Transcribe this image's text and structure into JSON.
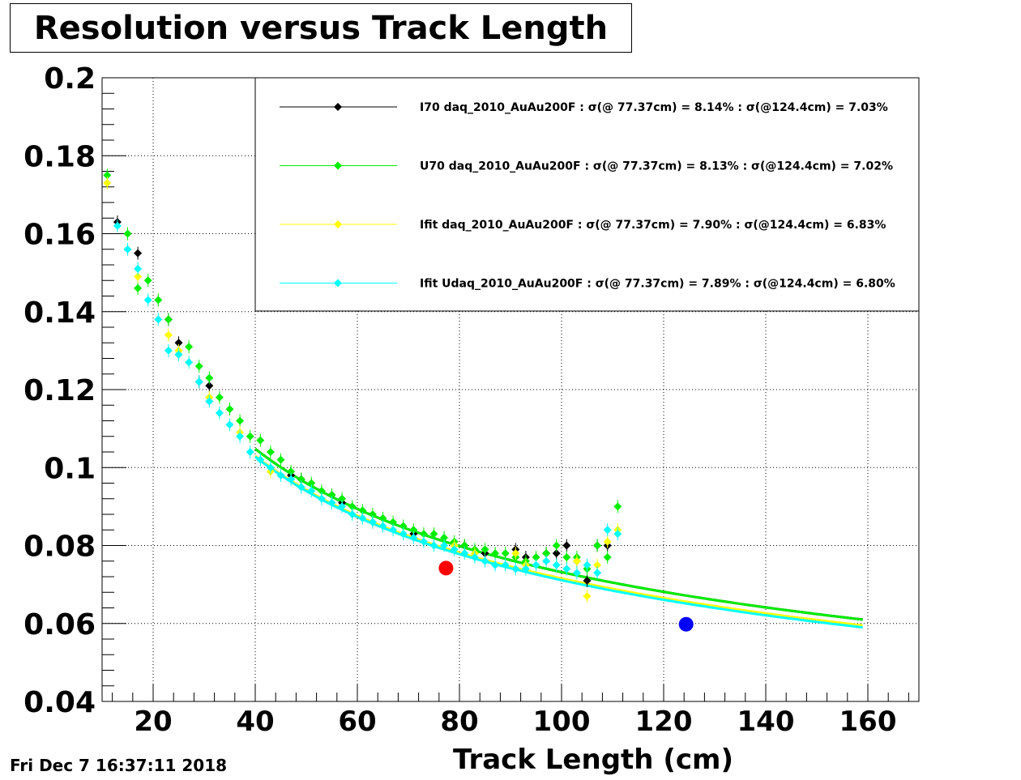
{
  "chart_data": {
    "type": "scatter",
    "title": "Resolution versus Track Length",
    "xlabel": "Track Length (cm)",
    "ylabel": "",
    "xlim": [
      10,
      170
    ],
    "ylim": [
      0.04,
      0.2
    ],
    "x_ticks": [
      20,
      40,
      60,
      80,
      100,
      120,
      140,
      160
    ],
    "y_ticks": [
      "0.04",
      "0.06",
      "0.08",
      "0.1",
      "0.12",
      "0.14",
      "0.16",
      "0.18",
      "0.2"
    ],
    "grid": true,
    "legend_position": "top-right",
    "timestamp": "Fri Dec  7 16:37:11 2018",
    "series": [
      {
        "name": "I70  daq_2010_AuAu200F : σ(@ 77.37cm) =  8.14% : σ(@124.4cm) =  7.03%",
        "color": "#000000",
        "x": [
          13,
          17,
          23,
          25,
          29,
          31,
          47,
          49,
          55,
          57,
          63,
          71,
          81,
          85,
          91,
          93,
          97,
          99,
          101,
          103,
          105,
          107,
          109
        ],
        "y": [
          0.163,
          0.155,
          0.138,
          0.132,
          0.122,
          0.121,
          0.098,
          0.097,
          0.093,
          0.091,
          0.086,
          0.083,
          0.08,
          0.078,
          0.079,
          0.077,
          0.078,
          0.078,
          0.08,
          0.076,
          0.071,
          0.08,
          0.08
        ],
        "fit": {
          "x_start": 40,
          "x_end": 159,
          "y_start": 0.1048,
          "y_end": 0.061
        }
      },
      {
        "name": "U70  daq_2010_AuAu200F : σ(@ 77.37cm) =  8.13% : σ(@124.4cm) =  7.02%",
        "color": "#00ee00",
        "x": [
          11,
          15,
          17,
          19,
          21,
          23,
          25,
          27,
          29,
          31,
          33,
          35,
          37,
          39,
          41,
          43,
          45,
          47,
          49,
          51,
          53,
          55,
          57,
          59,
          61,
          63,
          65,
          67,
          69,
          71,
          73,
          75,
          77,
          79,
          81,
          83,
          85,
          87,
          89,
          91,
          93,
          95,
          97,
          99,
          101,
          103,
          105,
          107,
          109,
          111
        ],
        "y": [
          0.175,
          0.16,
          0.146,
          0.148,
          0.143,
          0.138,
          0.129,
          0.131,
          0.126,
          0.123,
          0.118,
          0.115,
          0.112,
          0.108,
          0.107,
          0.104,
          0.102,
          0.099,
          0.097,
          0.096,
          0.094,
          0.093,
          0.092,
          0.09,
          0.089,
          0.088,
          0.087,
          0.086,
          0.085,
          0.084,
          0.083,
          0.083,
          0.082,
          0.081,
          0.08,
          0.079,
          0.079,
          0.078,
          0.078,
          0.077,
          0.076,
          0.077,
          0.078,
          0.08,
          0.077,
          0.077,
          0.074,
          0.08,
          0.077,
          0.09
        ],
        "fit": {
          "x_start": 40,
          "x_end": 159,
          "y_start": 0.1048,
          "y_end": 0.061
        }
      },
      {
        "name": "Ifit daq_2010_AuAu200F : σ(@ 77.37cm) =  7.90% : σ(@124.4cm) =  6.83%",
        "color": "#ffff00",
        "x": [
          11,
          17,
          23,
          25,
          27,
          31,
          37,
          43,
          63,
          79,
          83,
          85,
          91,
          93,
          103,
          105,
          107,
          109,
          111
        ],
        "y": [
          0.173,
          0.149,
          0.134,
          0.13,
          0.127,
          0.118,
          0.109,
          0.099,
          0.086,
          0.08,
          0.078,
          0.076,
          0.078,
          0.075,
          0.076,
          0.067,
          0.075,
          0.081,
          0.084
        ],
        "fit": {
          "x_start": 40,
          "x_end": 159,
          "y_start": 0.103,
          "y_end": 0.0595
        }
      },
      {
        "name": "Ifit Udaq_2010_AuAu200F : σ(@ 77.37cm) =  7.89% : σ(@124.4cm) =  6.80%",
        "color": "#00ffff",
        "x": [
          13,
          15,
          17,
          19,
          21,
          23,
          25,
          27,
          29,
          31,
          33,
          35,
          37,
          39,
          41,
          43,
          45,
          47,
          49,
          51,
          53,
          55,
          57,
          59,
          61,
          63,
          65,
          67,
          69,
          71,
          73,
          75,
          77,
          79,
          81,
          83,
          85,
          87,
          89,
          91,
          93,
          95,
          97,
          99,
          101,
          103,
          105,
          107,
          109,
          111
        ],
        "y": [
          0.162,
          0.156,
          0.151,
          0.143,
          0.138,
          0.13,
          0.129,
          0.127,
          0.122,
          0.117,
          0.114,
          0.111,
          0.108,
          0.104,
          0.102,
          0.1,
          0.098,
          0.097,
          0.095,
          0.094,
          0.092,
          0.091,
          0.09,
          0.088,
          0.087,
          0.086,
          0.085,
          0.084,
          0.083,
          0.082,
          0.081,
          0.08,
          0.08,
          0.079,
          0.078,
          0.077,
          0.076,
          0.075,
          0.075,
          0.074,
          0.074,
          0.075,
          0.076,
          0.075,
          0.074,
          0.073,
          0.075,
          0.073,
          0.084,
          0.083
        ],
        "fit": {
          "x_start": 40,
          "x_end": 159,
          "y_start": 0.1028,
          "y_end": 0.059
        }
      },
      {
        "name": "",
        "color": "#ff0000",
        "marker": "large-circle",
        "x": [
          77.37
        ],
        "y": [
          0.0742
        ],
        "fit": null
      },
      {
        "name": "",
        "color": "#0000ff",
        "marker": "large-circle",
        "x": [
          124.4
        ],
        "y": [
          0.0598
        ],
        "fit": null
      }
    ]
  }
}
